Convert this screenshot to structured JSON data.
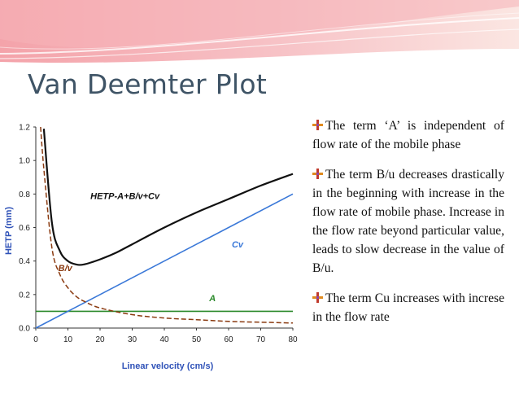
{
  "slide": {
    "title": "Van Deemter Plot",
    "bullets": [
      {
        "text": "The term ‘A’ is independent of flow rate of the mobile phase"
      },
      {
        "text": "The term B/u decreases drastically in the beginning with increase in the flow rate of mobile phase. Increase in the flow rate beyond particular value, leads to slow decrease in the value of B/u."
      },
      {
        "text": "The term Cu increases with increse in the flow rate"
      }
    ]
  },
  "colors": {
    "title": "#3f5466",
    "banner": "#f2a0a6",
    "axis_label": "#2f52b8",
    "hetp_curve": "#111111",
    "cv_line": "#3a78d8",
    "a_line": "#2b8a2b",
    "bv_curve": "#8a3a10"
  },
  "chart_data": {
    "type": "line",
    "title": "",
    "xlabel": "Linear velocity (cm/s)",
    "ylabel": "HETP (mm)",
    "xlim": [
      0,
      80
    ],
    "ylim": [
      0,
      1.2
    ],
    "xticks": [
      "0",
      "10",
      "20",
      "30",
      "40",
      "50",
      "60",
      "70",
      "80"
    ],
    "yticks": [
      "0.0",
      "0.2",
      "0.4",
      "0.6",
      "0.8",
      "1.0",
      "1.2"
    ],
    "grid": false,
    "annotations": [
      {
        "text": "HETP-A+B/v+Cv",
        "series": "hetp"
      },
      {
        "text": "Cv",
        "series": "cv"
      },
      {
        "text": "A",
        "series": "a"
      },
      {
        "text": "B/v",
        "series": "bv"
      }
    ],
    "series": [
      {
        "key": "hetp",
        "x": [
          2.5,
          5,
          7.5,
          10,
          12.5,
          15,
          20,
          25,
          30,
          40,
          50,
          60,
          70,
          80
        ],
        "y": [
          1.19,
          0.63,
          0.46,
          0.4,
          0.38,
          0.38,
          0.41,
          0.45,
          0.5,
          0.6,
          0.69,
          0.77,
          0.85,
          0.92
        ]
      },
      {
        "key": "cv",
        "x": [
          0,
          80
        ],
        "y": [
          0,
          0.8
        ]
      },
      {
        "key": "a",
        "x": [
          0,
          80
        ],
        "y": [
          0.1,
          0.1
        ]
      },
      {
        "key": "bv",
        "x": [
          1.5,
          2.5,
          5,
          7.5,
          10,
          12.5,
          15,
          20,
          30,
          40,
          50,
          60,
          70,
          80
        ],
        "y": [
          1.2,
          0.95,
          0.48,
          0.32,
          0.24,
          0.19,
          0.16,
          0.12,
          0.08,
          0.06,
          0.05,
          0.04,
          0.035,
          0.03
        ]
      }
    ]
  }
}
